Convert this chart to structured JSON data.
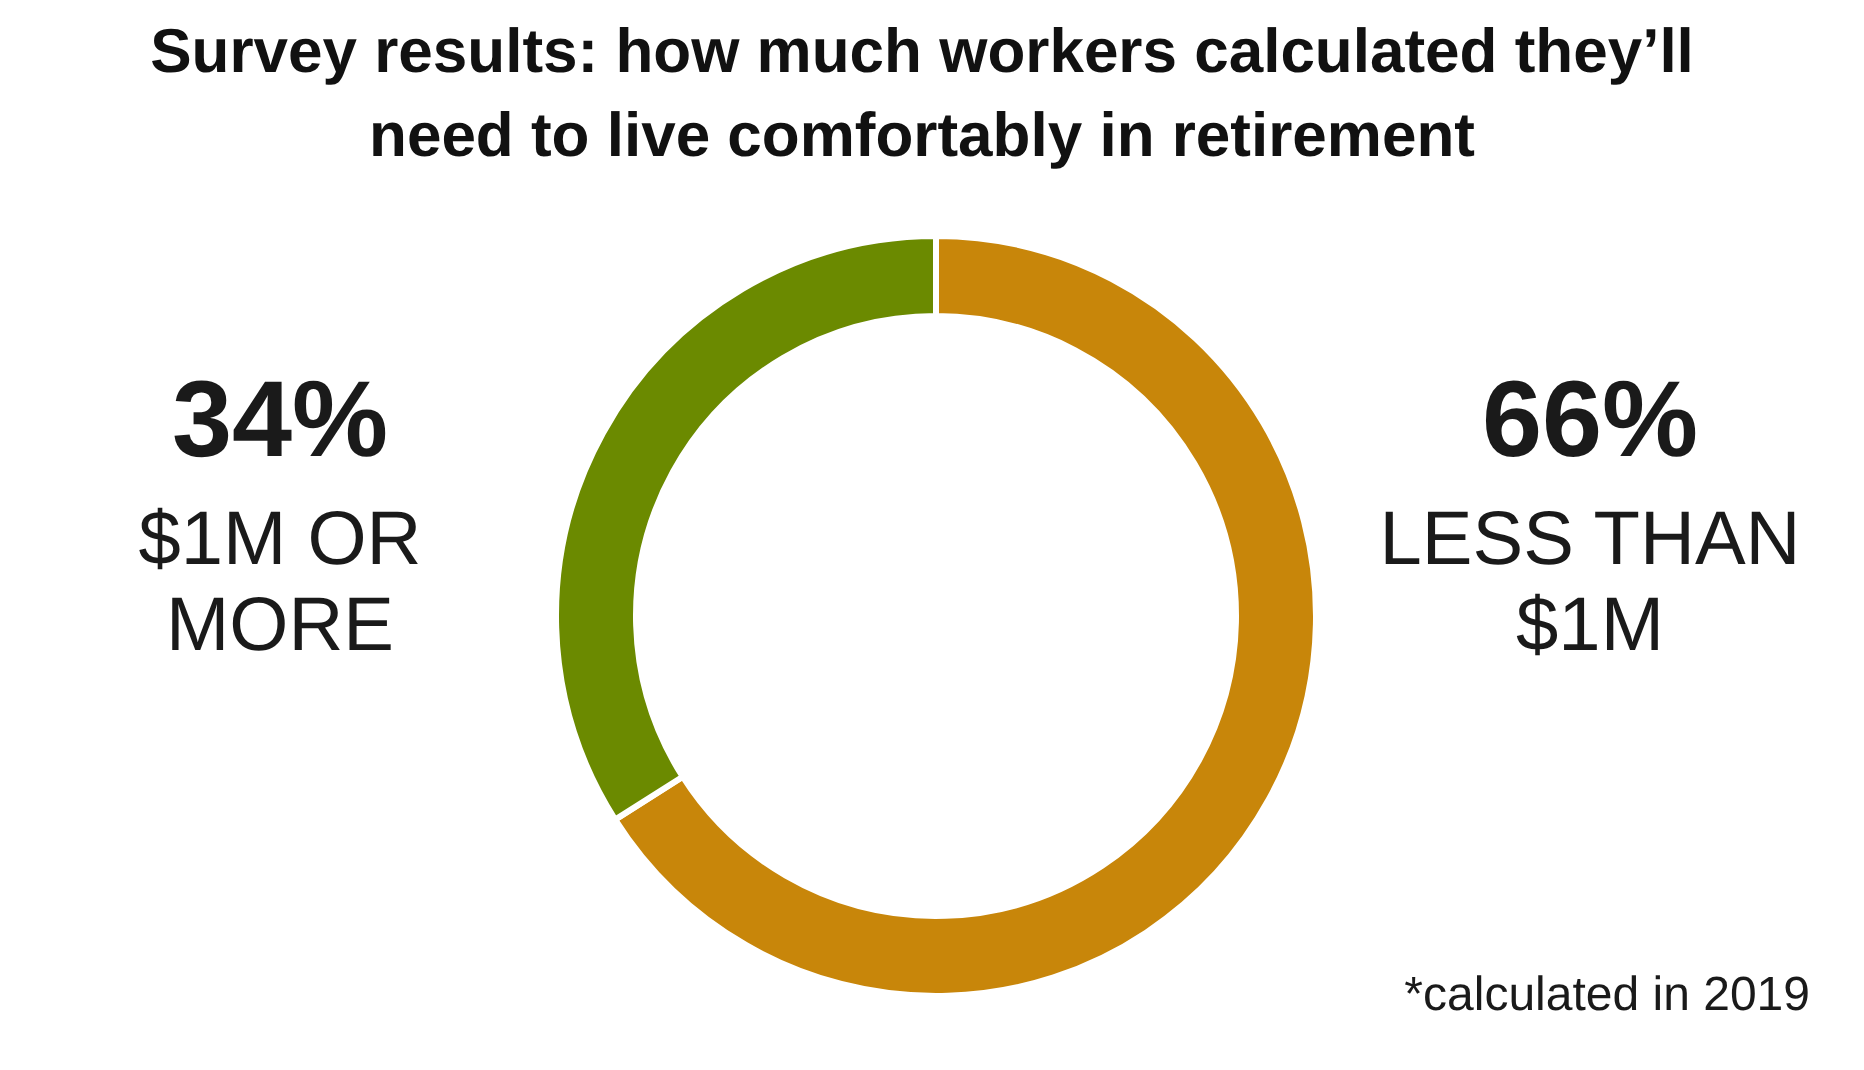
{
  "chart_data": {
    "type": "donut",
    "title": "Survey results: how much workers calculated they’ll need to live comfortably in retirement",
    "categories": [
      "LESS THAN $1M",
      "$1M OR MORE"
    ],
    "values": [
      66,
      34
    ],
    "colors": [
      "#c8860a",
      "#6b8a00"
    ],
    "value_labels": [
      "66%",
      "34%"
    ],
    "annotations": [
      "*calculated in 2019"
    ]
  }
}
